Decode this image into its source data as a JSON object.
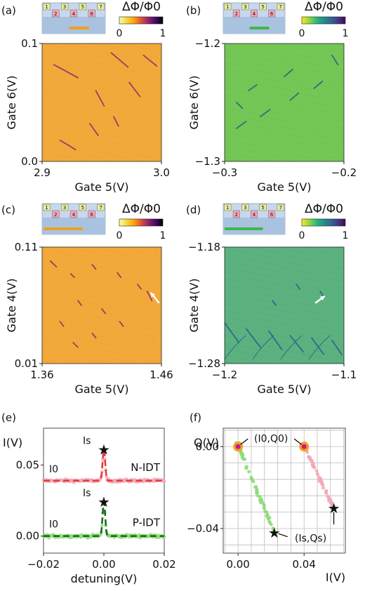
{
  "chart_data": [
    {
      "panel": "(a)",
      "type": "heatmap",
      "colormap": "inferno",
      "background_color": "#f2a93a",
      "xlabel": "Gate 5(V)",
      "ylabel": "Gate 6(V)",
      "xticks": [
        "2.9",
        "3.0"
      ],
      "yticks": [
        "0.1",
        "0.0"
      ],
      "xlim": [
        2.9,
        3.0
      ],
      "ylim": [
        0.0,
        0.1
      ],
      "colorbar": {
        "label": "ΔΦ/Φ0",
        "ticks": [
          "0",
          "1"
        ],
        "range": [
          0,
          1
        ]
      },
      "inset_gates": [
        "1",
        "2",
        "3",
        "4",
        "5",
        "6",
        "7"
      ],
      "lines": [
        [
          [
            2.91,
            0.082
          ],
          [
            2.93,
            0.071
          ]
        ],
        [
          [
            2.945,
            0.06
          ],
          [
            2.952,
            0.047
          ]
        ],
        [
          [
            2.958,
            0.092
          ],
          [
            2.972,
            0.08
          ]
        ],
        [
          [
            2.973,
            0.067
          ],
          [
            2.982,
            0.055
          ]
        ],
        [
          [
            2.985,
            0.09
          ],
          [
            2.996,
            0.081
          ]
        ],
        [
          [
            2.915,
            0.018
          ],
          [
            2.928,
            0.01
          ]
        ],
        [
          [
            2.94,
            0.032
          ],
          [
            2.947,
            0.022
          ]
        ],
        [
          [
            2.96,
            0.038
          ],
          [
            2.964,
            0.03
          ]
        ]
      ]
    },
    {
      "panel": "(b)",
      "type": "heatmap",
      "colormap": "viridis",
      "background_color": "#74c655",
      "xlabel": "Gate 5(V)",
      "ylabel": "Gate 6(V)",
      "xticks": [
        "−0.3",
        "−0.2"
      ],
      "yticks": [
        "−1.2",
        "−1.3"
      ],
      "xlim": [
        -0.3,
        -0.2
      ],
      "ylim": [
        -1.3,
        -1.2
      ],
      "colorbar": {
        "label": "ΔΦ/Φ0",
        "ticks": [
          "0",
          "1"
        ],
        "range": [
          0,
          1
        ]
      },
      "inset_gates": [
        "1",
        "2",
        "3",
        "4",
        "5",
        "6",
        "7"
      ],
      "lines": [
        [
          [
            -0.29,
            -1.272
          ],
          [
            -0.282,
            -1.266
          ]
        ],
        [
          [
            -0.27,
            -1.262
          ],
          [
            -0.262,
            -1.256
          ]
        ],
        [
          [
            -0.245,
            -1.248
          ],
          [
            -0.238,
            -1.242
          ]
        ],
        [
          [
            -0.225,
            -1.238
          ],
          [
            -0.218,
            -1.232
          ]
        ],
        [
          [
            -0.28,
            -1.24
          ],
          [
            -0.273,
            -1.235
          ]
        ],
        [
          [
            -0.25,
            -1.228
          ],
          [
            -0.243,
            -1.222
          ]
        ],
        [
          [
            -0.21,
            -1.21
          ],
          [
            -0.205,
            -1.218
          ]
        ],
        [
          [
            -0.29,
            -1.25
          ],
          [
            -0.285,
            -1.255
          ]
        ]
      ]
    },
    {
      "panel": "(c)",
      "type": "heatmap",
      "colormap": "inferno",
      "background_color": "#f2a93a",
      "xlabel": "Gate 5(V)",
      "ylabel": "Gate 4(V)",
      "xticks": [
        "1.36",
        "1.46"
      ],
      "yticks": [
        "0.11",
        "0.01"
      ],
      "xlim": [
        1.36,
        1.46
      ],
      "ylim": [
        0.01,
        0.11
      ],
      "colorbar": {
        "label": "ΔΦ/Φ0",
        "ticks": [
          "0",
          "1"
        ],
        "range": [
          0,
          1
        ]
      },
      "inset_gates": [
        "1",
        "2",
        "3",
        "4",
        "5",
        "6",
        "7"
      ],
      "arrow": {
        "from": [
          1.458,
          0.062
        ],
        "to": [
          1.451,
          0.071
        ]
      },
      "lines": [
        [
          [
            1.367,
            0.098
          ],
          [
            1.372,
            0.093
          ]
        ],
        [
          [
            1.384,
            0.087
          ],
          [
            1.387,
            0.084
          ]
        ],
        [
          [
            1.402,
            0.095
          ],
          [
            1.405,
            0.091
          ]
        ],
        [
          [
            1.423,
            0.088
          ],
          [
            1.426,
            0.084
          ]
        ],
        [
          [
            1.44,
            0.078
          ],
          [
            1.443,
            0.074
          ]
        ],
        [
          [
            1.448,
            0.072
          ],
          [
            1.452,
            0.064
          ]
        ],
        [
          [
            1.39,
            0.064
          ],
          [
            1.393,
            0.06
          ]
        ],
        [
          [
            1.41,
            0.057
          ],
          [
            1.413,
            0.053
          ]
        ],
        [
          [
            1.375,
            0.046
          ],
          [
            1.378,
            0.042
          ]
        ],
        [
          [
            1.402,
            0.036
          ],
          [
            1.405,
            0.032
          ]
        ],
        [
          [
            1.425,
            0.046
          ],
          [
            1.428,
            0.042
          ]
        ],
        [
          [
            1.386,
            0.028
          ],
          [
            1.39,
            0.024
          ]
        ]
      ]
    },
    {
      "panel": "(d)",
      "type": "heatmap",
      "colormap": "viridis",
      "background_color": "#5bb27f",
      "xlabel": "Gate 5(V)",
      "ylabel": "Gate 4(V)",
      "xticks": [
        "−1.2",
        "−1.1"
      ],
      "yticks": [
        "−1.18",
        "−1.28"
      ],
      "xlim": [
        -1.2,
        -1.1
      ],
      "ylim": [
        -1.28,
        -1.18
      ],
      "colorbar": {
        "label": "ΔΦ/Φ0",
        "ticks": [
          "0",
          "1"
        ],
        "range": [
          0,
          1
        ]
      },
      "inset_gates": [
        "1",
        "2",
        "3",
        "4",
        "5",
        "6",
        "7"
      ],
      "arrow": {
        "from": [
          -1.124,
          -1.228
        ],
        "to": [
          -1.116,
          -1.222
        ]
      },
      "lines": [
        [
          [
            -1.2,
            -1.245
          ],
          [
            -1.188,
            -1.262
          ]
        ],
        [
          [
            -1.182,
            -1.25
          ],
          [
            -1.17,
            -1.266
          ]
        ],
        [
          [
            -1.163,
            -1.252
          ],
          [
            -1.152,
            -1.268
          ]
        ],
        [
          [
            -1.145,
            -1.256
          ],
          [
            -1.134,
            -1.27
          ]
        ],
        [
          [
            -1.127,
            -1.258
          ],
          [
            -1.117,
            -1.272
          ]
        ],
        [
          [
            -1.11,
            -1.26
          ],
          [
            -1.102,
            -1.272
          ]
        ],
        [
          [
            -1.14,
            -1.212
          ],
          [
            -1.137,
            -1.216
          ]
        ],
        [
          [
            -1.12,
            -1.218
          ],
          [
            -1.117,
            -1.222
          ]
        ],
        [
          [
            -1.16,
            -1.226
          ],
          [
            -1.157,
            -1.23
          ]
        ]
      ]
    },
    {
      "panel": "(e)",
      "type": "line",
      "xlabel": "detuning(V)",
      "ylabel": "I(V)",
      "xticks": [
        "−0.02",
        "0.00",
        "0.02"
      ],
      "yticks": [
        "0.05",
        "0.00"
      ],
      "xlim": [
        -0.02,
        0.02
      ],
      "ylim": [
        -0.012,
        0.076
      ],
      "annotations": {
        "peak_label": "Is",
        "baseline_label": "I0"
      },
      "series": [
        {
          "name": "N-IDT",
          "color": "#e83a3a",
          "noise_color": "#f2a8b8",
          "baseline": 0.039,
          "peak": 0.061,
          "center": 0.0,
          "width": 0.0006
        },
        {
          "name": "P-IDT",
          "color": "#1e6b1e",
          "noise_color": "#8edc7a",
          "baseline": 0.0,
          "peak": 0.024,
          "center": 0.0,
          "width": 0.0006
        }
      ]
    },
    {
      "panel": "(f)",
      "type": "scatter",
      "xlabel": "I(V)",
      "ylabel": "Q(V)",
      "xticks": [
        "0.00",
        "0.04"
      ],
      "yticks": [
        "0.00",
        "−0.04"
      ],
      "xlim": [
        -0.009,
        0.065
      ],
      "ylim": [
        -0.052,
        0.009
      ],
      "grid": true,
      "annotations": {
        "start_label": "(I0,Q0)",
        "end_label": "(Is,Qs)"
      },
      "series": [
        {
          "name": "",
          "color": "#8edc7a",
          "from": [
            0.0,
            0.0
          ],
          "to": [
            0.022,
            -0.042
          ]
        },
        {
          "name": "",
          "color": "#f2a8b8",
          "from": [
            0.04,
            0.0
          ],
          "to": [
            0.058,
            -0.03
          ]
        }
      ],
      "markers": {
        "start_points": [
          [
            0.0,
            0.0
          ],
          [
            0.04,
            0.0
          ]
        ],
        "end_points": [
          [
            0.022,
            -0.042
          ],
          [
            0.058,
            -0.03
          ]
        ]
      }
    }
  ]
}
